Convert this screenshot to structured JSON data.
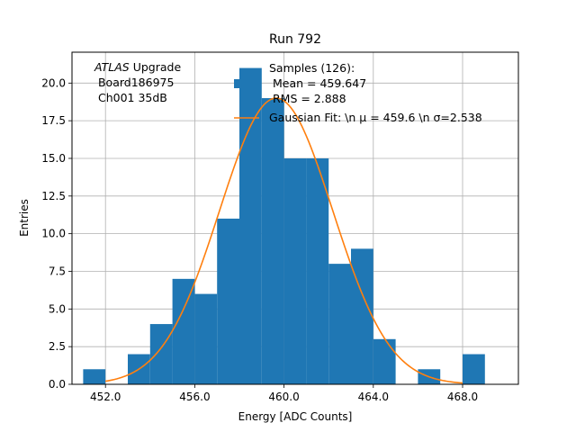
{
  "chart_data": {
    "type": "bar",
    "title": "Run 792",
    "xlabel": "Energy [ADC Counts]",
    "ylabel": "Entries",
    "xlim": [
      450.5,
      470.5
    ],
    "ylim": [
      0,
      22.05
    ],
    "xticks": [
      452,
      456,
      460,
      464,
      468
    ],
    "xtick_labels": [
      "452.0",
      "456.0",
      "460.0",
      "464.0",
      "468.0"
    ],
    "yticks": [
      0,
      2.5,
      5,
      7.5,
      10,
      12.5,
      15,
      17.5,
      20
    ],
    "ytick_labels": [
      "0.0",
      "2.5",
      "5.0",
      "7.5",
      "10.0",
      "12.5",
      "15.0",
      "17.5",
      "20.0"
    ],
    "grid": true,
    "histogram": {
      "bin_edges": [
        451,
        452,
        453,
        454,
        455,
        456,
        457,
        458,
        459,
        460,
        461,
        462,
        463,
        464,
        465,
        466,
        467,
        468,
        469
      ],
      "counts": [
        1,
        0,
        2,
        4,
        7,
        6,
        11,
        21,
        19,
        15,
        15,
        8,
        9,
        3,
        0,
        1,
        0,
        2
      ],
      "color": "#1f77b4"
    },
    "gaussian_fit": {
      "mu": 459.647,
      "sigma": 2.538,
      "amplitude": 19.0,
      "x_range": [
        452.0,
        468.0
      ],
      "color": "#ff7f0e"
    },
    "annotation": {
      "line1_italic": "ATLAS",
      "line1_rest": " Upgrade",
      "line2": " Board186975",
      "line3": " Ch001 35dB"
    },
    "legend": {
      "placement": "top-right",
      "hist_lines": [
        "Samples (126):",
        " Mean = 459.647",
        " RMS = 2.888"
      ],
      "fit_label": "Gaussian Fit: \\n μ = 459.6 \\n σ=2.538"
    }
  }
}
